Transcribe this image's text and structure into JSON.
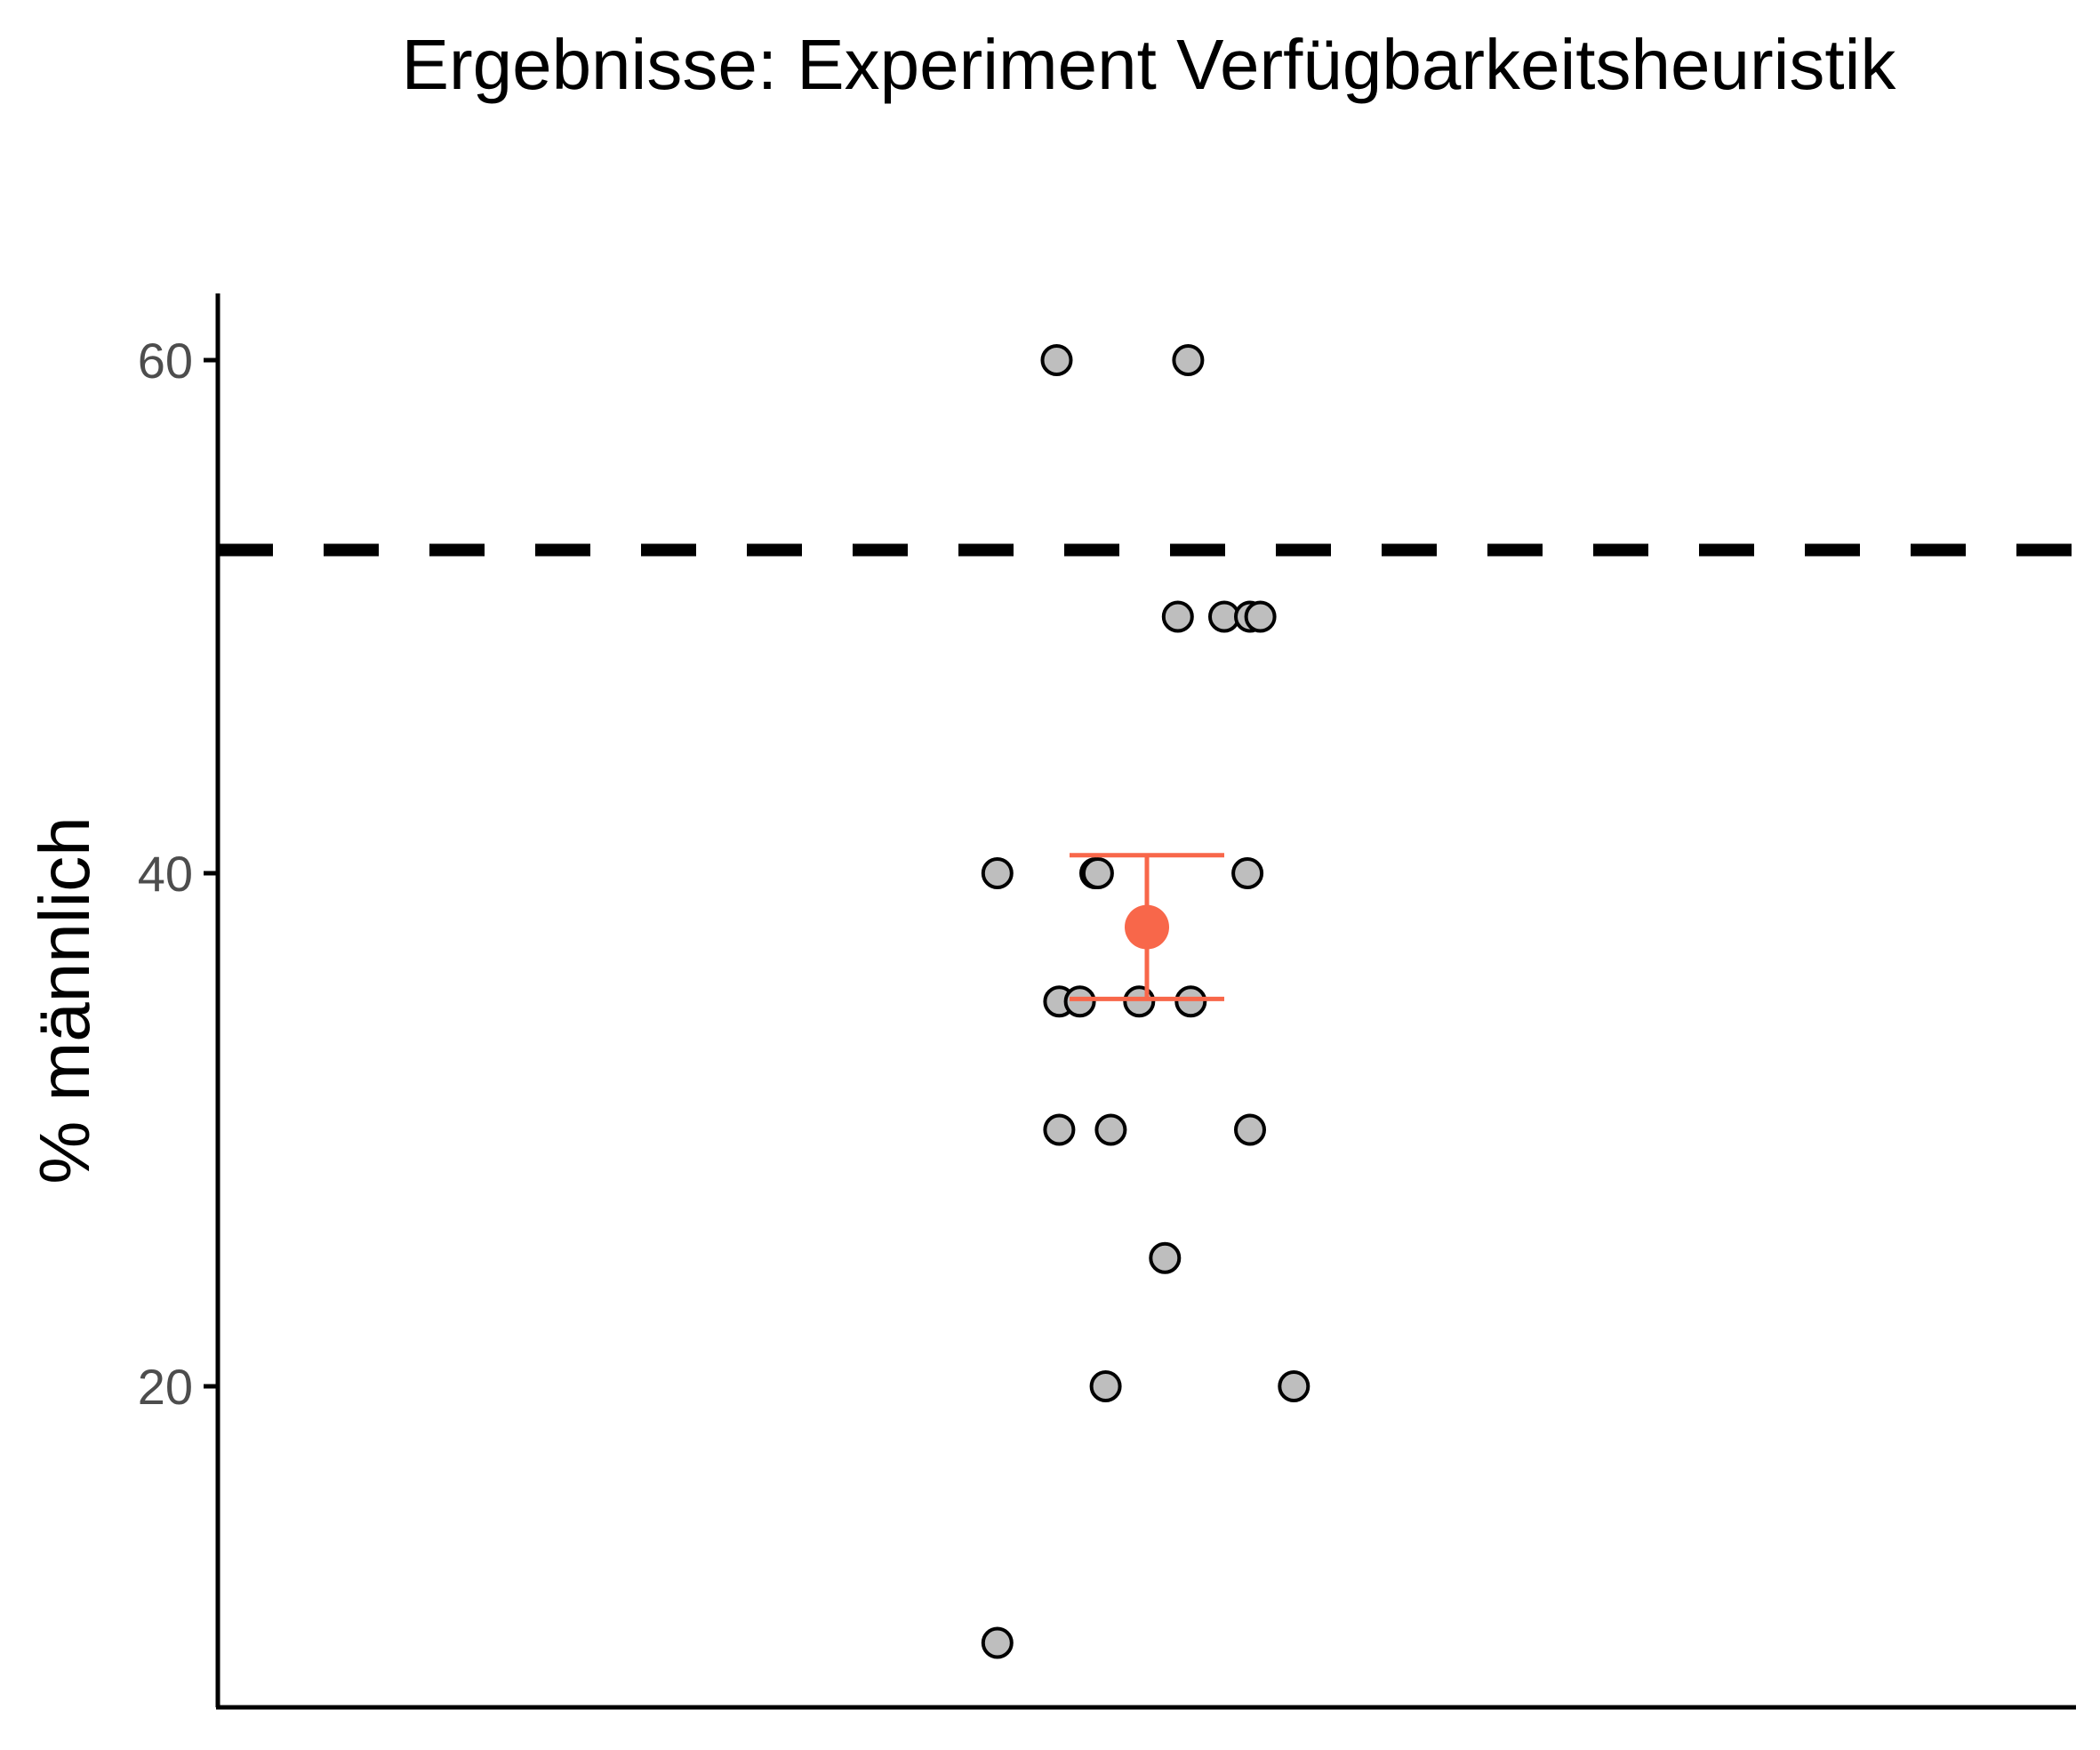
{
  "chart_data": {
    "type": "scatter",
    "title": "Ergebnisse: Experiment Verfügbarkeitsheuristik",
    "xlabel": "",
    "ylabel": "% männlich",
    "ylim": [
      7.5,
      62.5
    ],
    "yticks": [
      20,
      40,
      60
    ],
    "ytick_labels": [
      "20",
      "40",
      "60"
    ],
    "grid": false,
    "reference_line": {
      "y": 52.6,
      "style": "dashed",
      "color": "#000000"
    },
    "points": [
      {
        "x": -0.35,
        "y": 60
      },
      {
        "x": 0.16,
        "y": 60
      },
      {
        "x": 0.12,
        "y": 50
      },
      {
        "x": 0.3,
        "y": 50
      },
      {
        "x": 0.4,
        "y": 50
      },
      {
        "x": 0.44,
        "y": 50
      },
      {
        "x": -0.58,
        "y": 40
      },
      {
        "x": -0.2,
        "y": 40
      },
      {
        "x": -0.19,
        "y": 40
      },
      {
        "x": 0.39,
        "y": 40
      },
      {
        "x": -0.34,
        "y": 35
      },
      {
        "x": -0.26,
        "y": 35
      },
      {
        "x": -0.03,
        "y": 35
      },
      {
        "x": 0.17,
        "y": 35
      },
      {
        "x": -0.34,
        "y": 30
      },
      {
        "x": -0.14,
        "y": 30
      },
      {
        "x": 0.4,
        "y": 30
      },
      {
        "x": 0.07,
        "y": 25
      },
      {
        "x": -0.16,
        "y": 20
      },
      {
        "x": 0.57,
        "y": 20
      },
      {
        "x": -0.58,
        "y": 10
      }
    ],
    "summary": {
      "x": 0.0,
      "mean": 37.9,
      "ci_low": 35.1,
      "ci_high": 40.7,
      "color": "#F8674A"
    },
    "point_fill": "#BEBEBE",
    "point_stroke": "#000000"
  }
}
